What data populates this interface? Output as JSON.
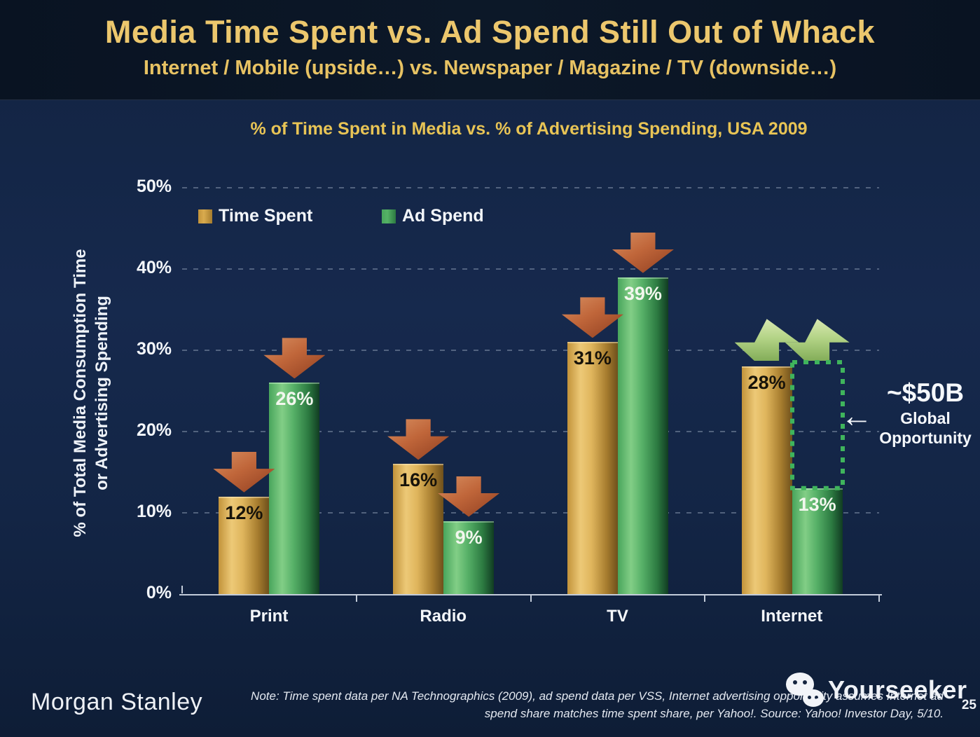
{
  "slide": {
    "title": "Media Time Spent vs. Ad Spend Still Out of Whack",
    "subtitle": "Internet / Mobile (upside…) vs. Newspaper / Magazine / TV (downside…)",
    "page_number": "25"
  },
  "chart_data": {
    "type": "bar",
    "title": "% of Time Spent in Media vs. % of Advertising Spending, USA 2009",
    "ylabel_line1": "% of Total Media Consumption Time",
    "ylabel_line2": "or Advertising Spending",
    "ylim": [
      0,
      50
    ],
    "ytick_values": [
      0,
      10,
      20,
      30,
      40,
      50
    ],
    "ytick_labels": [
      "0%",
      "10%",
      "20%",
      "30%",
      "40%",
      "50%"
    ],
    "grid": "dashed horizontal gridlines",
    "legend_position": "top-left inside plot",
    "categories": [
      "Print",
      "Radio",
      "TV",
      "Internet"
    ],
    "series": [
      {
        "name": "Time Spent",
        "values": [
          12,
          16,
          31,
          28
        ],
        "value_labels": [
          "12%",
          "16%",
          "31%",
          "28%"
        ],
        "color": "#d9ab4e"
      },
      {
        "name": "Ad Spend",
        "values": [
          26,
          9,
          39,
          13
        ],
        "value_labels": [
          "26%",
          "9%",
          "39%",
          "13%"
        ],
        "color": "#55b266"
      }
    ],
    "trend_arrows": [
      {
        "category": "Print",
        "series": 0,
        "direction": "down"
      },
      {
        "category": "Print",
        "series": 1,
        "direction": "down"
      },
      {
        "category": "Radio",
        "series": 0,
        "direction": "down"
      },
      {
        "category": "Radio",
        "series": 1,
        "direction": "down"
      },
      {
        "category": "TV",
        "series": 0,
        "direction": "down"
      },
      {
        "category": "TV",
        "series": 1,
        "direction": "down"
      },
      {
        "category": "Internet",
        "series": 0,
        "direction": "up"
      },
      {
        "category": "Internet",
        "series": 1,
        "direction": "up"
      }
    ],
    "opportunity_box": {
      "category": "Internet",
      "from_value": 13,
      "to_value": 28.5
    },
    "annotation": {
      "value": "~$50B",
      "line1": "Global",
      "line2": "Opportunity",
      "pointer": "left-arrow"
    }
  },
  "colors": {
    "background_top": "#0c1828",
    "background_body": "#16294d",
    "title_gold": "#ecc76d",
    "chart_title_gold": "#e8c455",
    "text_white": "#f3f6fa",
    "bar_gold_base": "#d9ab4e",
    "bar_green_base": "#55b266",
    "arrow_down_red": "#c0663a",
    "arrow_up_green": "#b4d487",
    "opportunity_dotted_green": "#3fb45c"
  },
  "footer": {
    "brand": "Morgan Stanley",
    "note_line1": "Note: Time spent data per NA Technographics (2009), ad spend data per VSS, Internet advertising opportunity assumes Internet ad",
    "note_line2": "spend share matches time spent share, per Yahoo!. Source: Yahoo! Investor Day, 5/10.",
    "watermark": "Yourseeker"
  }
}
